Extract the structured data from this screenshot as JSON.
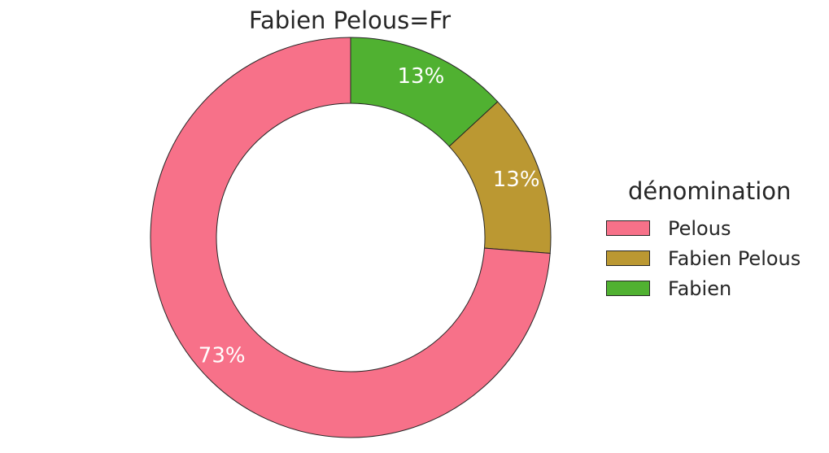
{
  "chart_data": {
    "type": "pie",
    "title": "Fabien Pelous=Fr",
    "donut": true,
    "categories": [
      "Pelous",
      "Fabien Pelous",
      "Fabien"
    ],
    "values": [
      73,
      13,
      13
    ],
    "percent_labels": [
      "73%",
      "13%",
      "13%"
    ],
    "colors": [
      "#f77189",
      "#bb9832",
      "#50b131"
    ],
    "legend": {
      "title": "dénomination",
      "placement": "right",
      "entries": [
        "Pelous",
        "Fabien Pelous",
        "Fabien"
      ]
    }
  }
}
